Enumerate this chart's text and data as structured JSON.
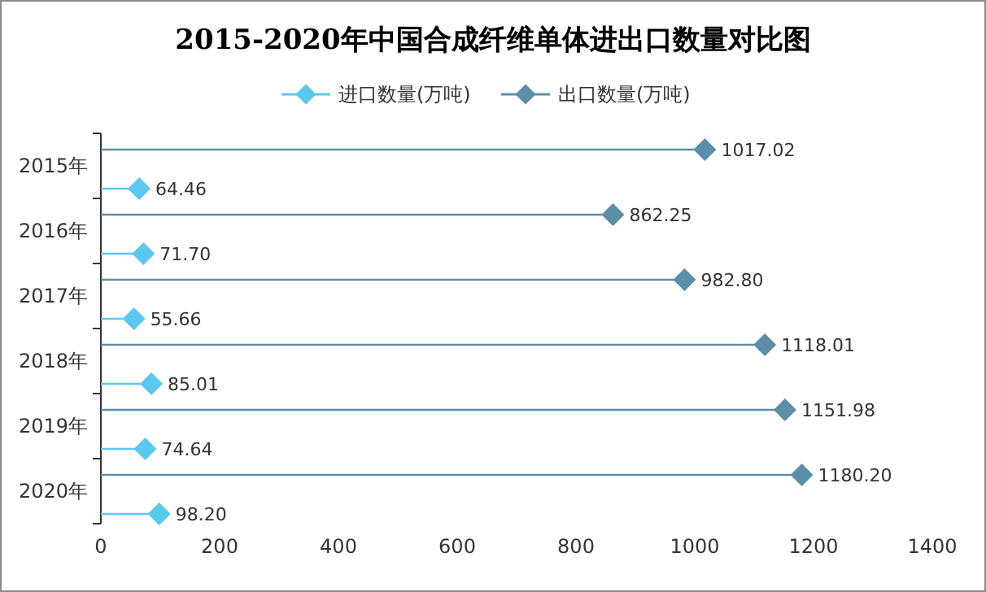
{
  "chart_data": {
    "type": "lollipop",
    "title": "2015-2020年中国合成纤维单体进出口数量对比图",
    "orientation": "horizontal",
    "categories": [
      "2015年",
      "2016年",
      "2017年",
      "2018年",
      "2019年",
      "2020年"
    ],
    "series": [
      {
        "name": "进口数量(万吨)",
        "color": "#5bc8f0",
        "values": [
          64.46,
          71.7,
          55.66,
          85.01,
          74.64,
          98.2
        ],
        "value_labels": [
          "64.46",
          "71.70",
          "55.66",
          "85.01",
          "74.64",
          "98.20"
        ]
      },
      {
        "name": "出口数量(万吨)",
        "color": "#5b8fa8",
        "values": [
          1017.02,
          862.25,
          982.8,
          1118.01,
          1151.98,
          1180.2
        ],
        "value_labels": [
          "1017.02",
          "862.25",
          "982.80",
          "1118.01",
          "1151.98",
          "1180.20"
        ]
      }
    ],
    "xlim": [
      0,
      1400
    ],
    "xticks": [
      0,
      200,
      400,
      600,
      800,
      1000,
      1200,
      1400
    ],
    "marker": "diamond",
    "legend": "top",
    "grid": false
  }
}
